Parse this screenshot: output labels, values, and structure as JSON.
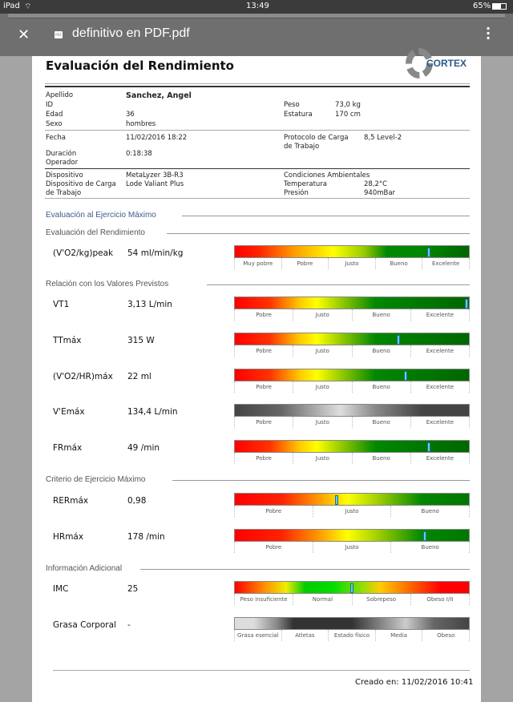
{
  "status_bar": {
    "device": "iPad",
    "time": "13:49",
    "battery": "65%"
  },
  "toolbar": {
    "close_icon": "close-icon",
    "file_icon": "pdf-file-icon",
    "file_icon_text": "PDF",
    "title": "definitivo en PDF.pdf",
    "more_icon": "more-vert-icon"
  },
  "document": {
    "title": "Evaluación del Rendimiento",
    "logo": "CORTEX",
    "patient": {
      "apellido_label": "Apellido",
      "apellido": "Sanchez, Angel",
      "id_label": "ID",
      "edad_label": "Edad",
      "edad": "36",
      "sexo_label": "Sexo",
      "sexo": "hombres",
      "peso_label": "Peso",
      "peso": "73,0 kg",
      "estatura_label": "Estatura",
      "estatura": "170 cm"
    },
    "test": {
      "fecha_label": "Fecha",
      "fecha": "11/02/2016 18:22",
      "duracion_label": "Duración",
      "duracion": "0:18:38",
      "operador_label": "Operador",
      "protocolo_label": "Protocolo de Carga de Trabajo",
      "protocolo": "8,5 Level-2"
    },
    "device": {
      "dispositivo_label": "Dispositivo",
      "dispositivo": "MetaLyzer 3B-R3",
      "carga_label": "Dispositivo de Carga de Trabajo",
      "carga": "Lode Valiant Plus",
      "condiciones_label": "Condiciones Ambientales",
      "temp_label": "Temperatura",
      "temp": "28,2°C",
      "presion_label": "Presión",
      "presion": "940mBar"
    },
    "section_main": "Evaluación al Ejercicio Máximo",
    "sections": [
      {
        "title": "Evaluación del Rendimiento",
        "rows": [
          {
            "label": "(V'O2/kg)peak",
            "value": "54 ml/min/kg",
            "scale": "g5",
            "ticks": [
              "Muy pobre",
              "Pobre",
              "Justo",
              "Bueno",
              "Excelente"
            ],
            "marker": 0.83
          }
        ]
      },
      {
        "title": "Relación con los Valores Previstos",
        "rows": [
          {
            "label": "VT1",
            "value": "3,13 L/min",
            "scale": "g4",
            "ticks": [
              "Pobre",
              "Justo",
              "Bueno",
              "Excelente"
            ],
            "marker": 0.99
          },
          {
            "label": "TTmáx",
            "value": "315 W",
            "scale": "g4",
            "ticks": [
              "Pobre",
              "Justo",
              "Bueno",
              "Excelente"
            ],
            "marker": 0.7
          },
          {
            "label": "(V'O2/HR)máx",
            "value": "22 ml",
            "scale": "g4",
            "ticks": [
              "Pobre",
              "Justo",
              "Bueno",
              "Excelente"
            ],
            "marker": 0.73
          },
          {
            "label": "V'Emáx",
            "value": "134,4 L/min",
            "scale": "ggray",
            "ticks": [
              "Pobre",
              "Justo",
              "Bueno",
              "Excelente"
            ],
            "marker": null
          },
          {
            "label": "FRmáx",
            "value": "49 /min",
            "scale": "g4",
            "ticks": [
              "Pobre",
              "Justo",
              "Bueno",
              "Excelente"
            ],
            "marker": 0.83
          }
        ]
      },
      {
        "title": "Criterio de Ejercicio Máximo",
        "rows": [
          {
            "label": "RERmáx",
            "value": "0,98",
            "scale": "g3",
            "ticks": [
              "Pobre",
              "Justo",
              "Bueno"
            ],
            "marker": 0.435
          },
          {
            "label": "HRmáx",
            "value": "178 /min",
            "scale": "g3",
            "ticks": [
              "Pobre",
              "Justo",
              "Bueno"
            ],
            "marker": 0.81
          }
        ]
      },
      {
        "title": "Información Adicional",
        "rows": [
          {
            "label": "IMC",
            "value": "25",
            "scale": "gimc",
            "ticks": [
              "Peso insuficiente",
              "Normal",
              "Sobrepeso",
              "Obeso I/II"
            ],
            "marker": 0.5
          },
          {
            "label": "Grasa Corporal",
            "value": "-",
            "scale": "gfat",
            "ticks": [
              "Grasa esencial",
              "Atletas",
              "Estado físico",
              "Media",
              "Obeso"
            ],
            "marker": null
          }
        ]
      }
    ],
    "footer": "Creado en: 11/02/2016 10:41"
  }
}
